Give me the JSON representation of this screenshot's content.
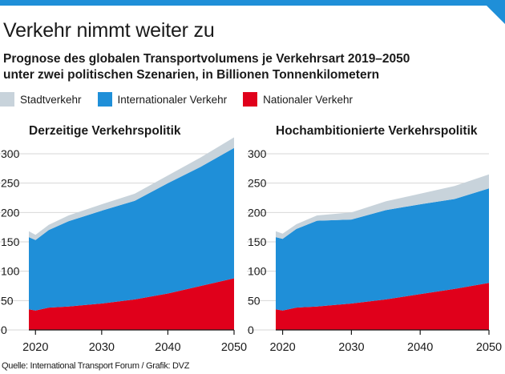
{
  "headline": "Verkehr nimmt weiter zu",
  "subtitle_line1": "Prognose des globalen Transportvolumens je Verkehrsart 2019–2050",
  "subtitle_line2": "unter zwei politischen Szenarien, in Billionen Tonnenkilometern",
  "legend": [
    {
      "label": "Stadtverkehr",
      "color": "#c8d3db"
    },
    {
      "label": "Internationaler Verkehr",
      "color": "#1f8fd8"
    },
    {
      "label": "Nationaler Verkehr",
      "color": "#e0001b"
    }
  ],
  "source": "Quelle: International Transport Forum / Grafik: DVZ",
  "chart_data": [
    {
      "type": "area",
      "title": "Derzeitige Verkehrspolitik",
      "x": [
        2019,
        2020,
        2022,
        2025,
        2030,
        2035,
        2040,
        2045,
        2050
      ],
      "series": [
        {
          "name": "Nationaler Verkehr",
          "values": [
            35,
            33,
            38,
            40,
            45,
            52,
            62,
            75,
            88
          ]
        },
        {
          "name": "Internationaler Verkehr",
          "values": [
            123,
            120,
            132,
            145,
            158,
            168,
            188,
            203,
            222
          ]
        },
        {
          "name": "Stadtverkehr",
          "values": [
            10,
            9,
            9,
            10,
            11,
            12,
            13,
            16,
            18
          ]
        }
      ],
      "xticks": [
        2020,
        2030,
        2040,
        2050
      ],
      "yticks": [
        0,
        50,
        100,
        150,
        200,
        250,
        300
      ],
      "xlim": [
        2019,
        2050
      ],
      "ylim": [
        0,
        330
      ],
      "stacked": true
    },
    {
      "type": "area",
      "title": "Hochambitionierte Verkehrspolitik",
      "x": [
        2019,
        2020,
        2022,
        2025,
        2030,
        2035,
        2040,
        2045,
        2050
      ],
      "series": [
        {
          "name": "Nationaler Verkehr",
          "values": [
            35,
            33,
            38,
            40,
            45,
            52,
            61,
            70,
            80
          ]
        },
        {
          "name": "Internationaler Verkehr",
          "values": [
            123,
            122,
            134,
            146,
            143,
            152,
            153,
            153,
            161
          ]
        },
        {
          "name": "Stadtverkehr",
          "values": [
            10,
            9,
            8,
            9,
            12,
            15,
            18,
            22,
            24
          ]
        }
      ],
      "xticks": [
        2020,
        2030,
        2040,
        2050
      ],
      "yticks": [
        0,
        50,
        100,
        150,
        200,
        250,
        300
      ],
      "xlim": [
        2019,
        2050
      ],
      "ylim": [
        0,
        330
      ],
      "stacked": true
    }
  ]
}
